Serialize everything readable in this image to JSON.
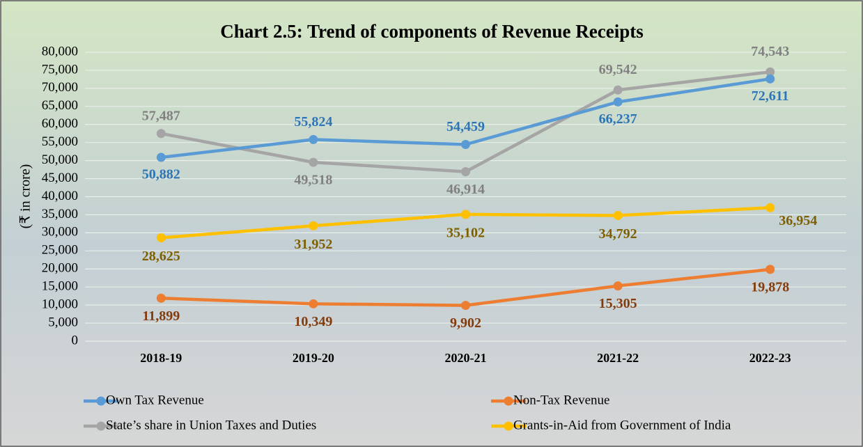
{
  "chart_data": {
    "type": "line",
    "title": "Chart 2.5: Trend of components of Revenue Receipts",
    "y_label": "(₹ in crore)",
    "categories": [
      "2018-19",
      "2019-20",
      "2020-21",
      "2021-22",
      "2022-23"
    ],
    "series": [
      {
        "name": "Own Tax Revenue",
        "color": "#5b9bd5",
        "label_color": "#2e75b6",
        "values": [
          50882,
          55824,
          54459,
          66237,
          72611
        ],
        "value_labels": [
          "50,882",
          "55,824",
          "54,459",
          "66,237",
          "72,611"
        ]
      },
      {
        "name": "Non-Tax Revenue",
        "color": "#ed7d31",
        "label_color": "#843c0c",
        "values": [
          11899,
          10349,
          9902,
          15305,
          19878
        ],
        "value_labels": [
          "11,899",
          "10,349",
          "9,902",
          "15,305",
          "19,878"
        ]
      },
      {
        "name": "State’s share in Union Taxes and  Duties",
        "color": "#a5a5a5",
        "label_color": "#808080",
        "values": [
          57487,
          49518,
          46914,
          69542,
          74543
        ],
        "value_labels": [
          "57,487",
          "49,518",
          "46,914",
          "69,542",
          "74,543"
        ]
      },
      {
        "name": "Grants-in-Aid from Government of  India",
        "color": "#ffc000",
        "label_color": "#7f6000",
        "values": [
          28625,
          31952,
          35102,
          34792,
          36954
        ],
        "value_labels": [
          "28,625",
          "31,952",
          "35,102",
          "34,792",
          "36,954"
        ]
      }
    ],
    "ylim": [
      0,
      80000
    ],
    "yticks": [
      0,
      {
        "value": 5000,
        "label": "5,000"
      },
      {
        "value": 10000,
        "label": "10,000"
      },
      {
        "value": 15000,
        "label": "15,000"
      },
      {
        "value": 20000,
        "label": "20,000"
      },
      {
        "value": 25000,
        "label": "25,000"
      },
      {
        "value": 30000,
        "label": "30,000"
      },
      {
        "value": 35000,
        "label": "35,000"
      },
      {
        "value": 40000,
        "label": "40,000"
      },
      {
        "value": 45000,
        "label": "45,000"
      },
      {
        "value": 50000,
        "label": "50,000"
      },
      {
        "value": 55000,
        "label": "55,000"
      },
      {
        "value": 60000,
        "label": "60,000"
      },
      {
        "value": 65000,
        "label": "65,000"
      },
      {
        "value": 70000,
        "label": "70,000"
      },
      {
        "value": 75000,
        "label": "75,000"
      },
      {
        "value": 80000,
        "label": "80,000"
      }
    ],
    "grid": true,
    "legend": "bottom"
  }
}
